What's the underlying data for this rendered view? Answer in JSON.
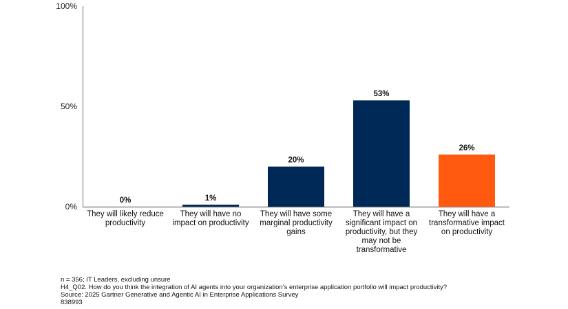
{
  "chart_data": {
    "type": "bar",
    "title": "",
    "xlabel": "",
    "ylabel": "",
    "ylim": [
      0,
      100
    ],
    "yticks": [
      "0%",
      "50%",
      "100%"
    ],
    "ytick_values": [
      0,
      50,
      100
    ],
    "grid": false,
    "categories": [
      "They will likely reduce productivity",
      "They will have no impact on productivity",
      "They will have some marginal productivity gains",
      "They will have a significant impact on productivity, but they may not be transformative",
      "They will have a transformative impact on productivity"
    ],
    "values": [
      0,
      1,
      20,
      53,
      26
    ],
    "data_labels": [
      "0%",
      "1%",
      "20%",
      "53%",
      "26%"
    ],
    "bar_colors": [
      "#002856",
      "#002856",
      "#002856",
      "#002856",
      "#FF5A0F"
    ]
  },
  "footnotes": {
    "sample": "n = 356; IT Leaders, excluding unsure",
    "question": "H4_Q02. How do you think the integration of AI agents into your organization’s enterprise application portfolio will impact productivity?",
    "source": "Source: 2025 Gartner Generative and Agentic AI in Enterprise Applications Survey",
    "id": "838993"
  },
  "colors": {
    "axis": "#8c8c8c",
    "primary_bar": "#002856",
    "highlight_bar": "#FF5A0F"
  }
}
